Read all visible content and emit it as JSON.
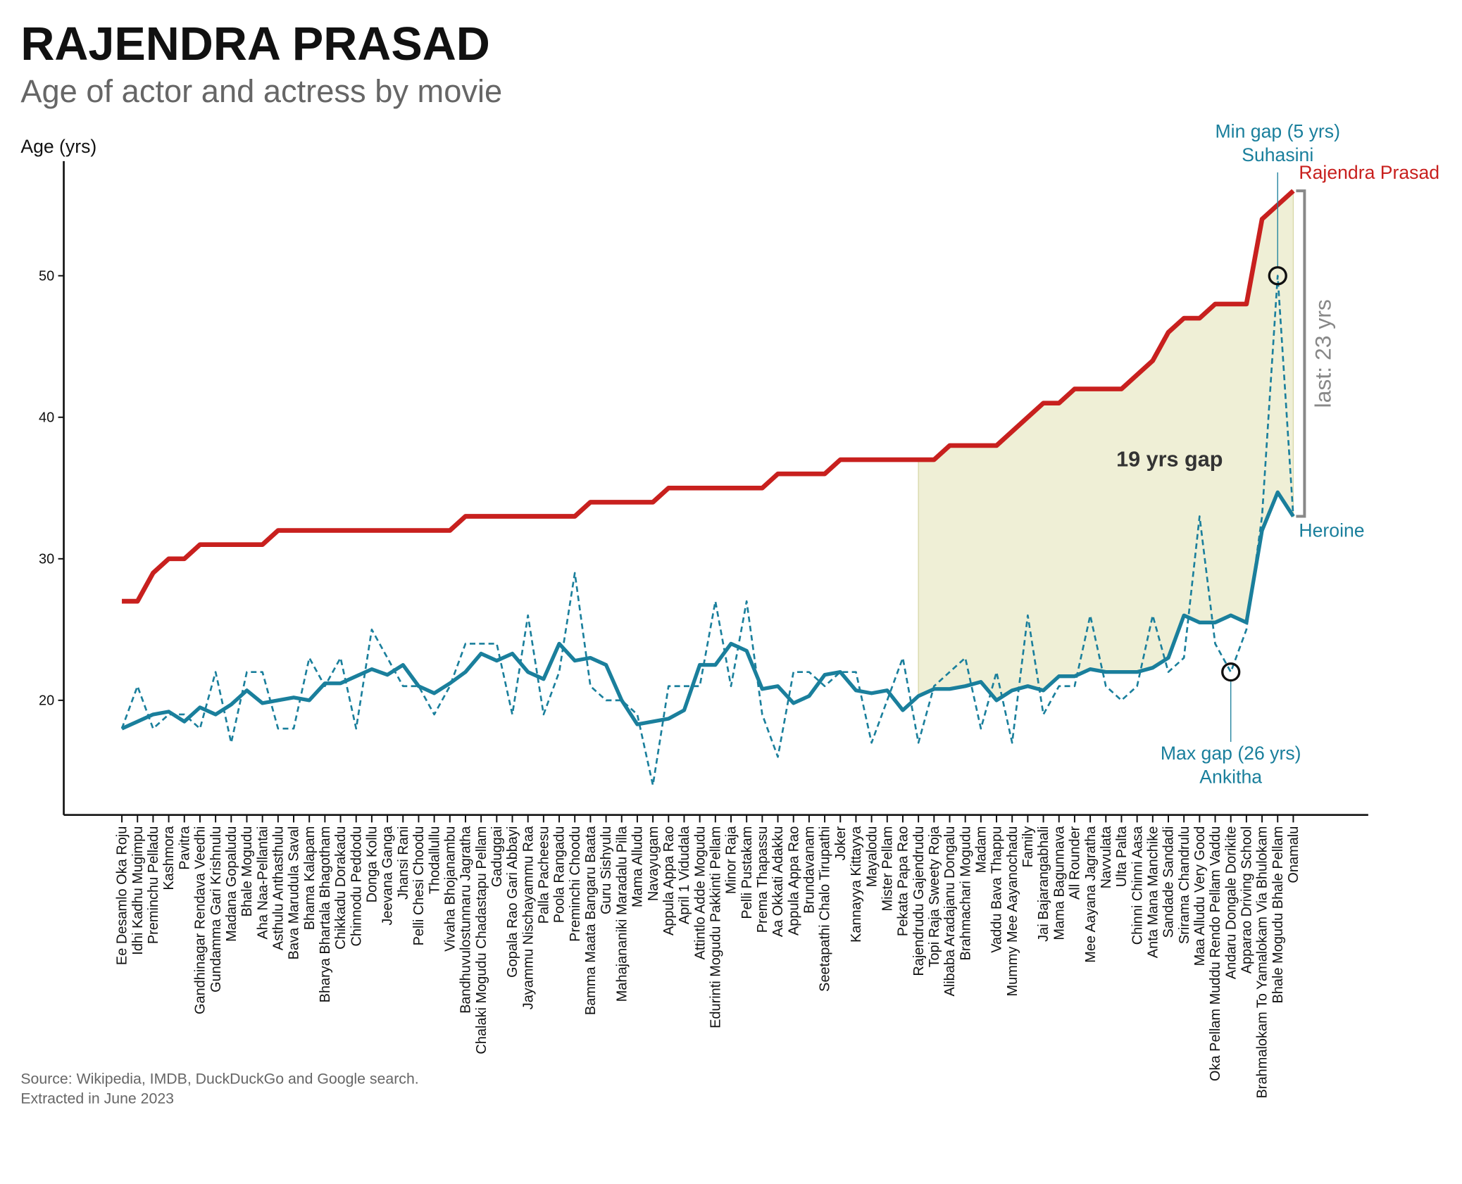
{
  "chart_data": {
    "type": "line",
    "title": "RAJENDRA PRASAD",
    "subtitle": "Age of actor and actress by movie",
    "y_label": "Age (yrs)",
    "categories": [
      "Ee Desamlo Oka Roju",
      "Idhi Kadhu Mugimpu",
      "Preminchu Pelladu",
      "Kashmora",
      "Pavitra",
      "Gandhinagar Rendava Veedhi",
      "Gundamma Gari Krishnulu",
      "Madana Gopaludu",
      "Bhale Mogudu",
      "Aha Naa-Pellantai",
      "Asthulu Anthasthulu",
      "Bava Marudula Saval",
      "Bhama Kalapam",
      "Bharya Bhartala Bhagotham",
      "Chikkadu Dorakadu",
      "Chinnodu Peddodu",
      "Donga Kollu",
      "Jeevana Ganga",
      "Jhansi Rani",
      "Pelli Chesi Choodu",
      "Thodallullu",
      "Vivaha Bhojanambu",
      "Bandhuvulostunnaru Jagratha",
      "Chalaki Mogudu Chadastapu Pellam",
      "Gaduggai",
      "Gopala Rao Gari Abbayi",
      "Jayammu Nischayammu Raa",
      "Palla Pacheesu",
      "Poola Rangadu",
      "Preminchi Choodu",
      "Bamma Maata Bangaru Baata",
      "Guru Sishyulu",
      "Mahajananiki Maradalu Pilla",
      "Mama Alludu",
      "Navayugam",
      "Appula Appa Rao",
      "April 1 Vidudala",
      "Attintlo Adde Mogudu",
      "Edurinti Mogudu Pakkinti Pellam",
      "Minor Raja",
      "Pelli Pustakam",
      "Prema Thapassu",
      "Aa Okkati Adakku",
      "Appula Appa Rao",
      "Brundavanam",
      "Seetapathi Chalo Tirupathi",
      "Joker",
      "Kannayya Kittayya",
      "Mayalodu",
      "Mister Pellam",
      "Pekata Papa Rao",
      "Rajendrudu Gajendrudu",
      "Topi Raja Sweety Roja",
      "Alibaba Aradajanu Dongalu",
      "Brahmachari Mogudu",
      "Madam",
      "Vaddu Bava Thappu",
      "Mummy Mee Aayanochadu",
      "Family",
      "Jai Bajarangabhali",
      "Mama Bagunnava",
      "All Rounder",
      "Mee Aayana Jagratha",
      "Navvulata",
      "Ulta Palta",
      "Chinni Chinni Aasa",
      "Anta Mana Manchike",
      "Sandade Sandadi",
      "Srirama Chandrulu",
      "Maa Alludu Very Good",
      "Oka Pellam Muddu Rendo Pellam Vaddu",
      "Andaru Dongale Dorikite",
      "Apparao Driving School",
      "Brahmalokam To Yamalokam Via Bhulokam",
      "Bhale Mogudu Bhale Pellam",
      "Onamalu"
    ],
    "series": [
      {
        "name": "Rajendra Prasad",
        "color": "#c8201e",
        "style": "solid",
        "values": [
          27,
          27,
          29,
          30,
          30,
          31,
          31,
          31,
          31,
          31,
          32,
          32,
          32,
          32,
          32,
          32,
          32,
          32,
          32,
          32,
          32,
          32,
          33,
          33,
          33,
          33,
          33,
          33,
          33,
          33,
          34,
          34,
          34,
          34,
          34,
          35,
          35,
          35,
          35,
          35,
          35,
          35,
          36,
          36,
          36,
          36,
          37,
          37,
          37,
          37,
          37,
          37,
          37,
          38,
          38,
          38,
          38,
          39,
          40,
          41,
          41,
          42,
          42,
          42,
          42,
          43,
          44,
          46,
          47,
          47,
          48,
          48,
          48,
          54,
          55,
          56
        ]
      },
      {
        "color": "#1a7f9c",
        "style": "dashed",
        "values": [
          18,
          21,
          18,
          19,
          19,
          18,
          22,
          17,
          22,
          22,
          18,
          18,
          23,
          21,
          23,
          18,
          25,
          23,
          21,
          21,
          19,
          21,
          24,
          24,
          24,
          19,
          26,
          19,
          22,
          29,
          21,
          20,
          20,
          19,
          14,
          21,
          21,
          21,
          27,
          21,
          27,
          19,
          16,
          22,
          22,
          21,
          22,
          22,
          17,
          20,
          23,
          17,
          21,
          22,
          23,
          18,
          22,
          17,
          26,
          19,
          21,
          21,
          26,
          21,
          20,
          21,
          26,
          22,
          23,
          33,
          24,
          22,
          25,
          33,
          50,
          33
        ]
      },
      {
        "name": "Heroine",
        "color": "#1a7f9c",
        "style": "solid",
        "values": [
          18,
          18.5,
          19,
          19.2,
          18.5,
          19.5,
          19,
          19.7,
          20.7,
          19.8,
          20,
          20.2,
          20,
          21.2,
          21.2,
          21.7,
          22.2,
          21.8,
          22.5,
          21,
          20.5,
          21.2,
          22,
          23.3,
          22.8,
          23.3,
          22,
          21.5,
          24,
          22.8,
          23,
          22.5,
          20,
          18.3,
          18.5,
          18.7,
          19.3,
          22.5,
          22.5,
          24,
          23.5,
          20.8,
          21,
          19.8,
          20.3,
          21.8,
          22,
          20.7,
          20.5,
          20.7,
          19.3,
          20.3,
          20.8,
          20.8,
          21,
          21.3,
          20,
          20.7,
          21,
          20.7,
          21.7,
          21.7,
          22.2,
          22,
          22,
          22,
          22.3,
          23,
          26,
          25.5,
          25.5,
          26,
          25.5,
          32,
          34.7,
          33
        ]
      }
    ],
    "ylim": [
      11.9,
      58.1
    ],
    "yticks": [
      20,
      30,
      40,
      50
    ],
    "grid": false,
    "annotations": {
      "gap": "19 yrs gap",
      "last": "last: 23 yrs",
      "min_gap": [
        "Min gap (5 yrs)",
        "Suhasini"
      ],
      "max_gap": [
        "Max gap (26 yrs)",
        "Ankitha"
      ]
    },
    "source": [
      "Source: Wikipedia, IMDB, DuckDuckGo and Google search.",
      "Extracted in June 2023"
    ]
  }
}
